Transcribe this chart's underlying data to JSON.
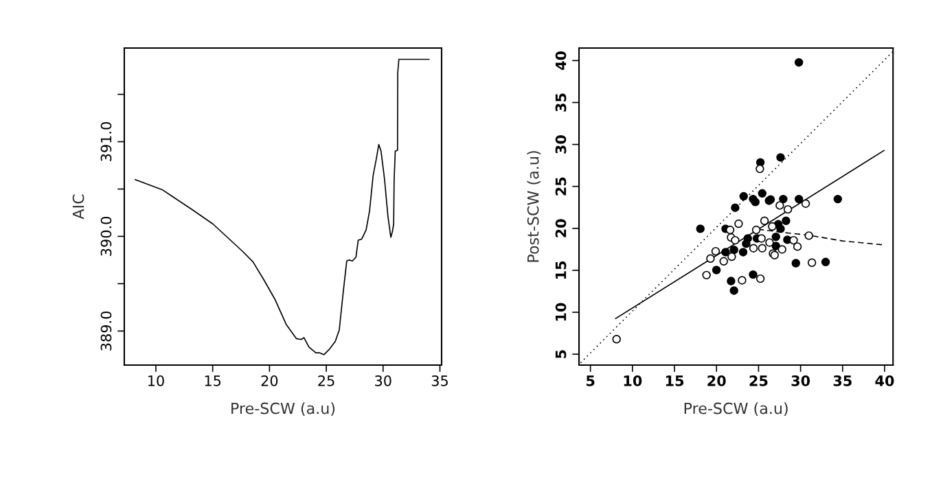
{
  "chart_data": [
    {
      "type": "line",
      "xlabel": "Pre-SCW (a.u)",
      "ylabel": "AIC",
      "xlim": [
        7.22,
        35.15
      ],
      "ylim": [
        388.64,
        391.99
      ],
      "xticks": [
        10,
        15,
        20,
        25,
        30,
        35
      ],
      "yticks": [
        {
          "value": 389.0,
          "label": "389.0"
        },
        {
          "value": 389.5,
          "label": null
        },
        {
          "value": 390.0,
          "label": "390.0"
        },
        {
          "value": 390.5,
          "label": null
        },
        {
          "value": 391.0,
          "label": "391.0"
        },
        {
          "value": 391.5,
          "label": null
        }
      ],
      "grid": false,
      "legend": false,
      "series": [
        {
          "color": "#000000",
          "line_style": "solid",
          "marker": "none",
          "x": [
            8.19,
            10.6,
            13.22,
            15.03,
            17.65,
            18.55,
            19.46,
            20.46,
            21.47,
            22.37,
            22.78,
            23.04,
            23.48,
            24.08,
            24.39,
            24.79,
            25.29,
            25.79,
            26.14,
            26.5,
            26.8,
            27.01,
            27.3,
            27.61,
            27.81,
            28.11,
            28.51,
            28.81,
            29.12,
            29.42,
            29.62,
            29.82,
            30.12,
            30.42,
            30.68,
            30.82,
            30.93,
            30.97,
            31.07,
            31.27,
            31.29,
            31.39,
            34.04
          ],
          "values": [
            390.6,
            390.49,
            390.28,
            390.13,
            389.84,
            389.73,
            389.55,
            389.34,
            389.07,
            388.92,
            388.91,
            388.93,
            388.83,
            388.77,
            388.77,
            388.75,
            388.81,
            388.89,
            389.01,
            389.42,
            389.74,
            389.75,
            389.74,
            389.78,
            389.96,
            389.97,
            390.07,
            390.27,
            390.64,
            390.83,
            390.97,
            390.9,
            390.61,
            390.22,
            389.99,
            390.05,
            390.13,
            390.59,
            390.9,
            390.91,
            391.73,
            391.87,
            391.87
          ]
        }
      ]
    },
    {
      "type": "scatter",
      "xlabel": "Pre-SCW (a.u)",
      "ylabel": "Post-SCW (a.u)",
      "xlim": [
        3.64,
        41.0
      ],
      "ylim": [
        3.7,
        41.5
      ],
      "xticks": [
        5,
        10,
        15,
        20,
        25,
        30,
        35,
        40
      ],
      "yticks": [
        5,
        10,
        15,
        20,
        25,
        30,
        35,
        40
      ],
      "grid": false,
      "legend": false,
      "series": [
        {
          "type": "scatter",
          "color": "#000000",
          "marker": "circle",
          "x": [
            29.8,
            27.62,
            25.22,
            23.23,
            22.22,
            25.44,
            24.35,
            24.62,
            26.25,
            26.44,
            27.94,
            29.8,
            34.43,
            18.08,
            21.08,
            28.27,
            27.34,
            27.62,
            27.07,
            23.72,
            24.81,
            23.53,
            28.43,
            27.07,
            22.08,
            21.08,
            23.17,
            19.99,
            29.44,
            32.98,
            24.35,
            21.73,
            22.08
          ],
          "values": [
            39.78,
            28.46,
            27.86,
            23.82,
            22.46,
            24.17,
            23.49,
            23.14,
            23.3,
            23.44,
            23.49,
            23.49,
            23.49,
            19.95,
            19.95,
            20.9,
            20.49,
            19.95,
            18.99,
            18.8,
            18.8,
            18.17,
            18.64,
            17.9,
            17.43,
            17.16,
            17.16,
            15.03,
            15.85,
            15.99,
            14.49,
            13.72,
            12.58
          ]
        },
        {
          "type": "scatter",
          "color": "#ffffff",
          "marker": "circle",
          "x": [
            8.11,
            25.16,
            27.53,
            28.49,
            30.61,
            22.63,
            25.71,
            24.73,
            21.62,
            26.63,
            21.73,
            22.22,
            25.35,
            26.31,
            30.99,
            29.17,
            29.63,
            24.4,
            25.44,
            27.8,
            26.72,
            26.91,
            19.9,
            19.28,
            20.86,
            21.81,
            31.35,
            18.81,
            23.04,
            25.22
          ],
          "values": [
            6.79,
            27.09,
            22.73,
            22.26,
            22.95,
            20.55,
            20.9,
            19.81,
            19.81,
            20.22,
            18.91,
            18.58,
            18.8,
            18.31,
            19.13,
            18.58,
            17.82,
            17.63,
            17.63,
            17.49,
            17.0,
            16.81,
            17.27,
            16.4,
            16.07,
            16.62,
            15.91,
            14.43,
            13.81,
            14.0
          ]
        },
        {
          "type": "line",
          "color": "#000000",
          "line_style": "dotted",
          "marker": "none",
          "x": [
            3.83,
            41.0
          ],
          "values": [
            3.98,
            41.09
          ]
        },
        {
          "type": "line",
          "color": "#000000",
          "line_style": "solid",
          "marker": "none",
          "x": [
            8.0,
            39.93
          ],
          "values": [
            9.25,
            29.28
          ]
        },
        {
          "type": "line",
          "color": "#000000",
          "line_style": "dashed",
          "marker": "none",
          "x": [
            24.95,
            28.0,
            30.99,
            35.0,
            39.8
          ],
          "values": [
            19.9,
            19.5,
            19.18,
            18.5,
            18.04
          ]
        }
      ]
    }
  ]
}
